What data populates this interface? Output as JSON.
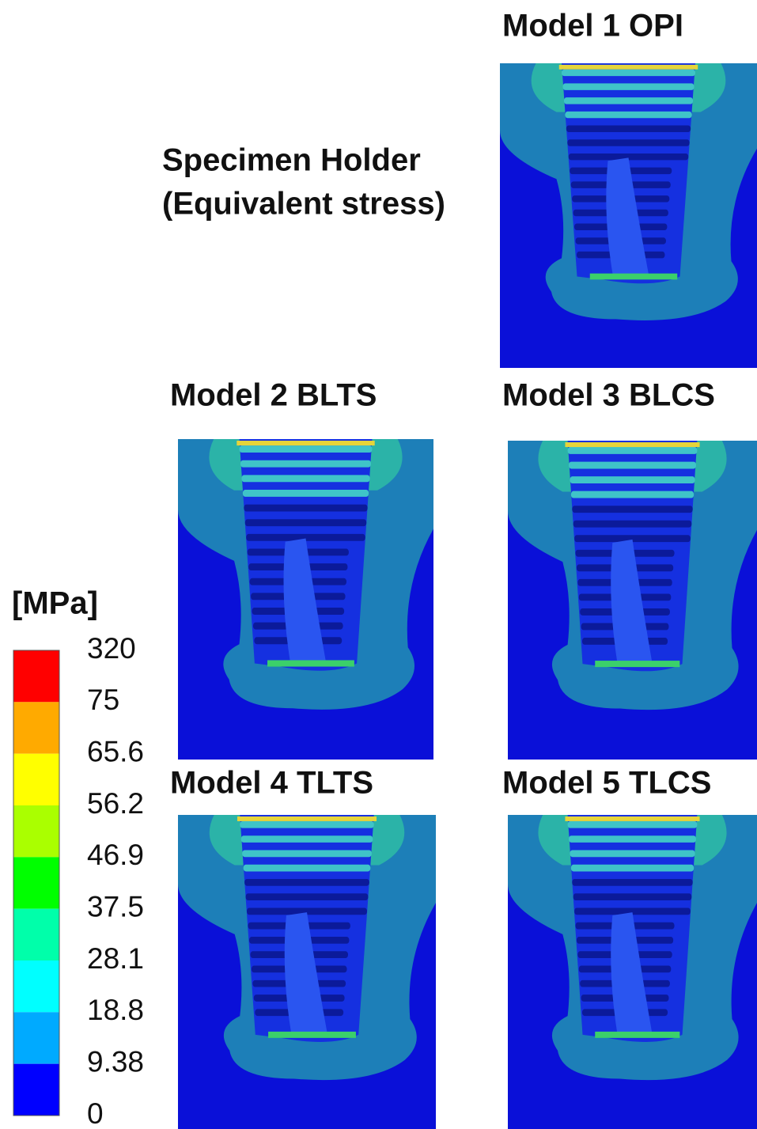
{
  "figure": {
    "heading": {
      "line1": "Specimen Holder",
      "line2": "(Equivalent stress)"
    },
    "panels": [
      {
        "label": "Model 1 OPI"
      },
      {
        "label": "Model 2 BLTS"
      },
      {
        "label": "Model 3 BLCS"
      },
      {
        "label": "Model 4 TLTS"
      },
      {
        "label": "Model 5 TLCS"
      }
    ],
    "legend": {
      "unit": "[MPa]",
      "levels": [
        320,
        75,
        65.6,
        56.2,
        46.9,
        37.5,
        28.1,
        18.8,
        9.38,
        0
      ],
      "colors": [
        "#ff0000",
        "#ffaa00",
        "#ffff00",
        "#aaff00",
        "#00ff00",
        "#00ffaa",
        "#00ffff",
        "#00aaff",
        "#0000ff"
      ]
    }
  }
}
